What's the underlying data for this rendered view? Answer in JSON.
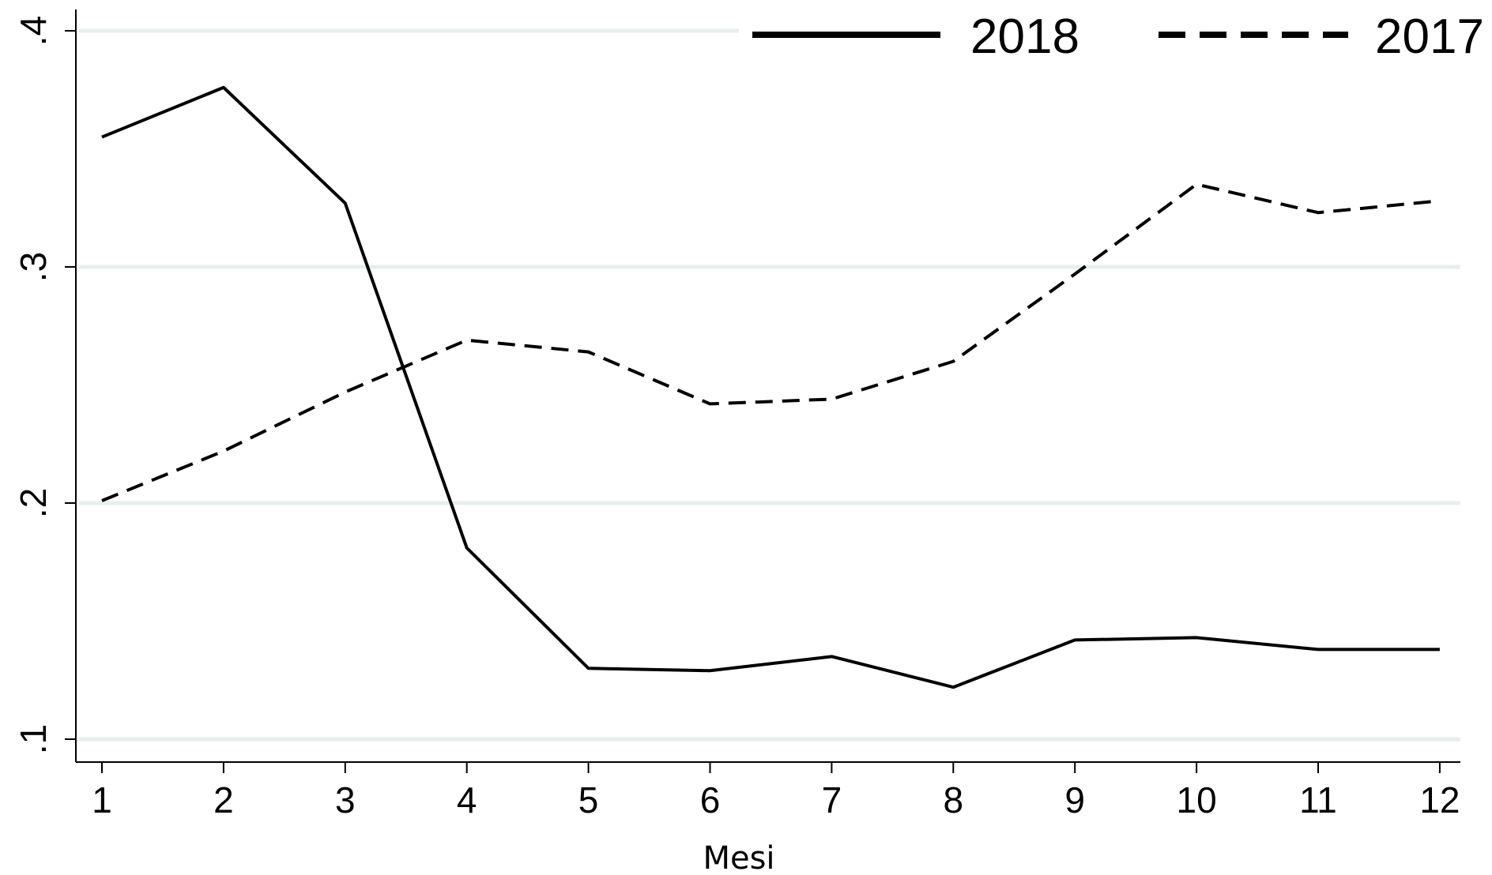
{
  "chart_data": {
    "type": "line",
    "title": "",
    "xlabel": "Mesi",
    "ylabel": "",
    "categories": [
      "1",
      "2",
      "3",
      "4",
      "5",
      "6",
      "7",
      "8",
      "9",
      "10",
      "11",
      "12"
    ],
    "x": [
      1,
      2,
      3,
      4,
      5,
      6,
      7,
      8,
      9,
      10,
      11,
      12
    ],
    "x_tick_labels": [
      "1",
      "2",
      "3",
      "4",
      "5",
      "6",
      "7",
      "8",
      "9",
      "10",
      "11",
      "12"
    ],
    "y_ticks": [
      0.1,
      0.2,
      0.3,
      0.4
    ],
    "y_tick_labels": [
      ".1",
      ".2",
      ".3",
      ".4"
    ],
    "xlim": [
      1,
      12
    ],
    "ylim": [
      0.1,
      0.4
    ],
    "grid": "horizontal",
    "legend": "top-right",
    "series": [
      {
        "name": "2018",
        "line_style": "solid",
        "color": "#000000",
        "values": [
          0.355,
          0.376,
          0.327,
          0.181,
          0.13,
          0.129,
          0.135,
          0.122,
          0.142,
          0.143,
          0.138,
          0.138
        ]
      },
      {
        "name": "2017",
        "line_style": "dashed",
        "color": "#000000",
        "values": [
          0.201,
          0.222,
          0.247,
          0.269,
          0.264,
          0.242,
          0.244,
          0.26,
          0.297,
          0.335,
          0.323,
          0.328
        ]
      }
    ],
    "colors": {
      "grid": "#e8eeee",
      "axis": "#000000",
      "background": "#ffffff"
    }
  }
}
